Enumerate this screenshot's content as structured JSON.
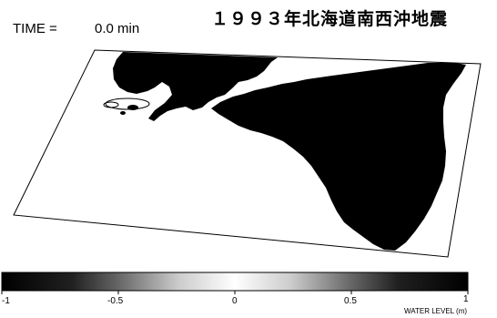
{
  "header": {
    "time_label": "TIME =",
    "time_value": "0.0 min",
    "title": "１９９３年北海道南西沖地震"
  },
  "map": {
    "land_color": "#000000",
    "sea_color": "#ffffff",
    "frame_color": "#000000"
  },
  "colorbar": {
    "ticks": [
      "-1",
      "-0.5",
      "0",
      "0.5",
      "1"
    ],
    "unit_label": "WATER LEVEL (m)",
    "range": [
      -1,
      1
    ],
    "colors": [
      "#000000",
      "#555555",
      "#aaaaaa",
      "#ffffff",
      "#aaaaaa",
      "#555555",
      "#000000"
    ]
  }
}
